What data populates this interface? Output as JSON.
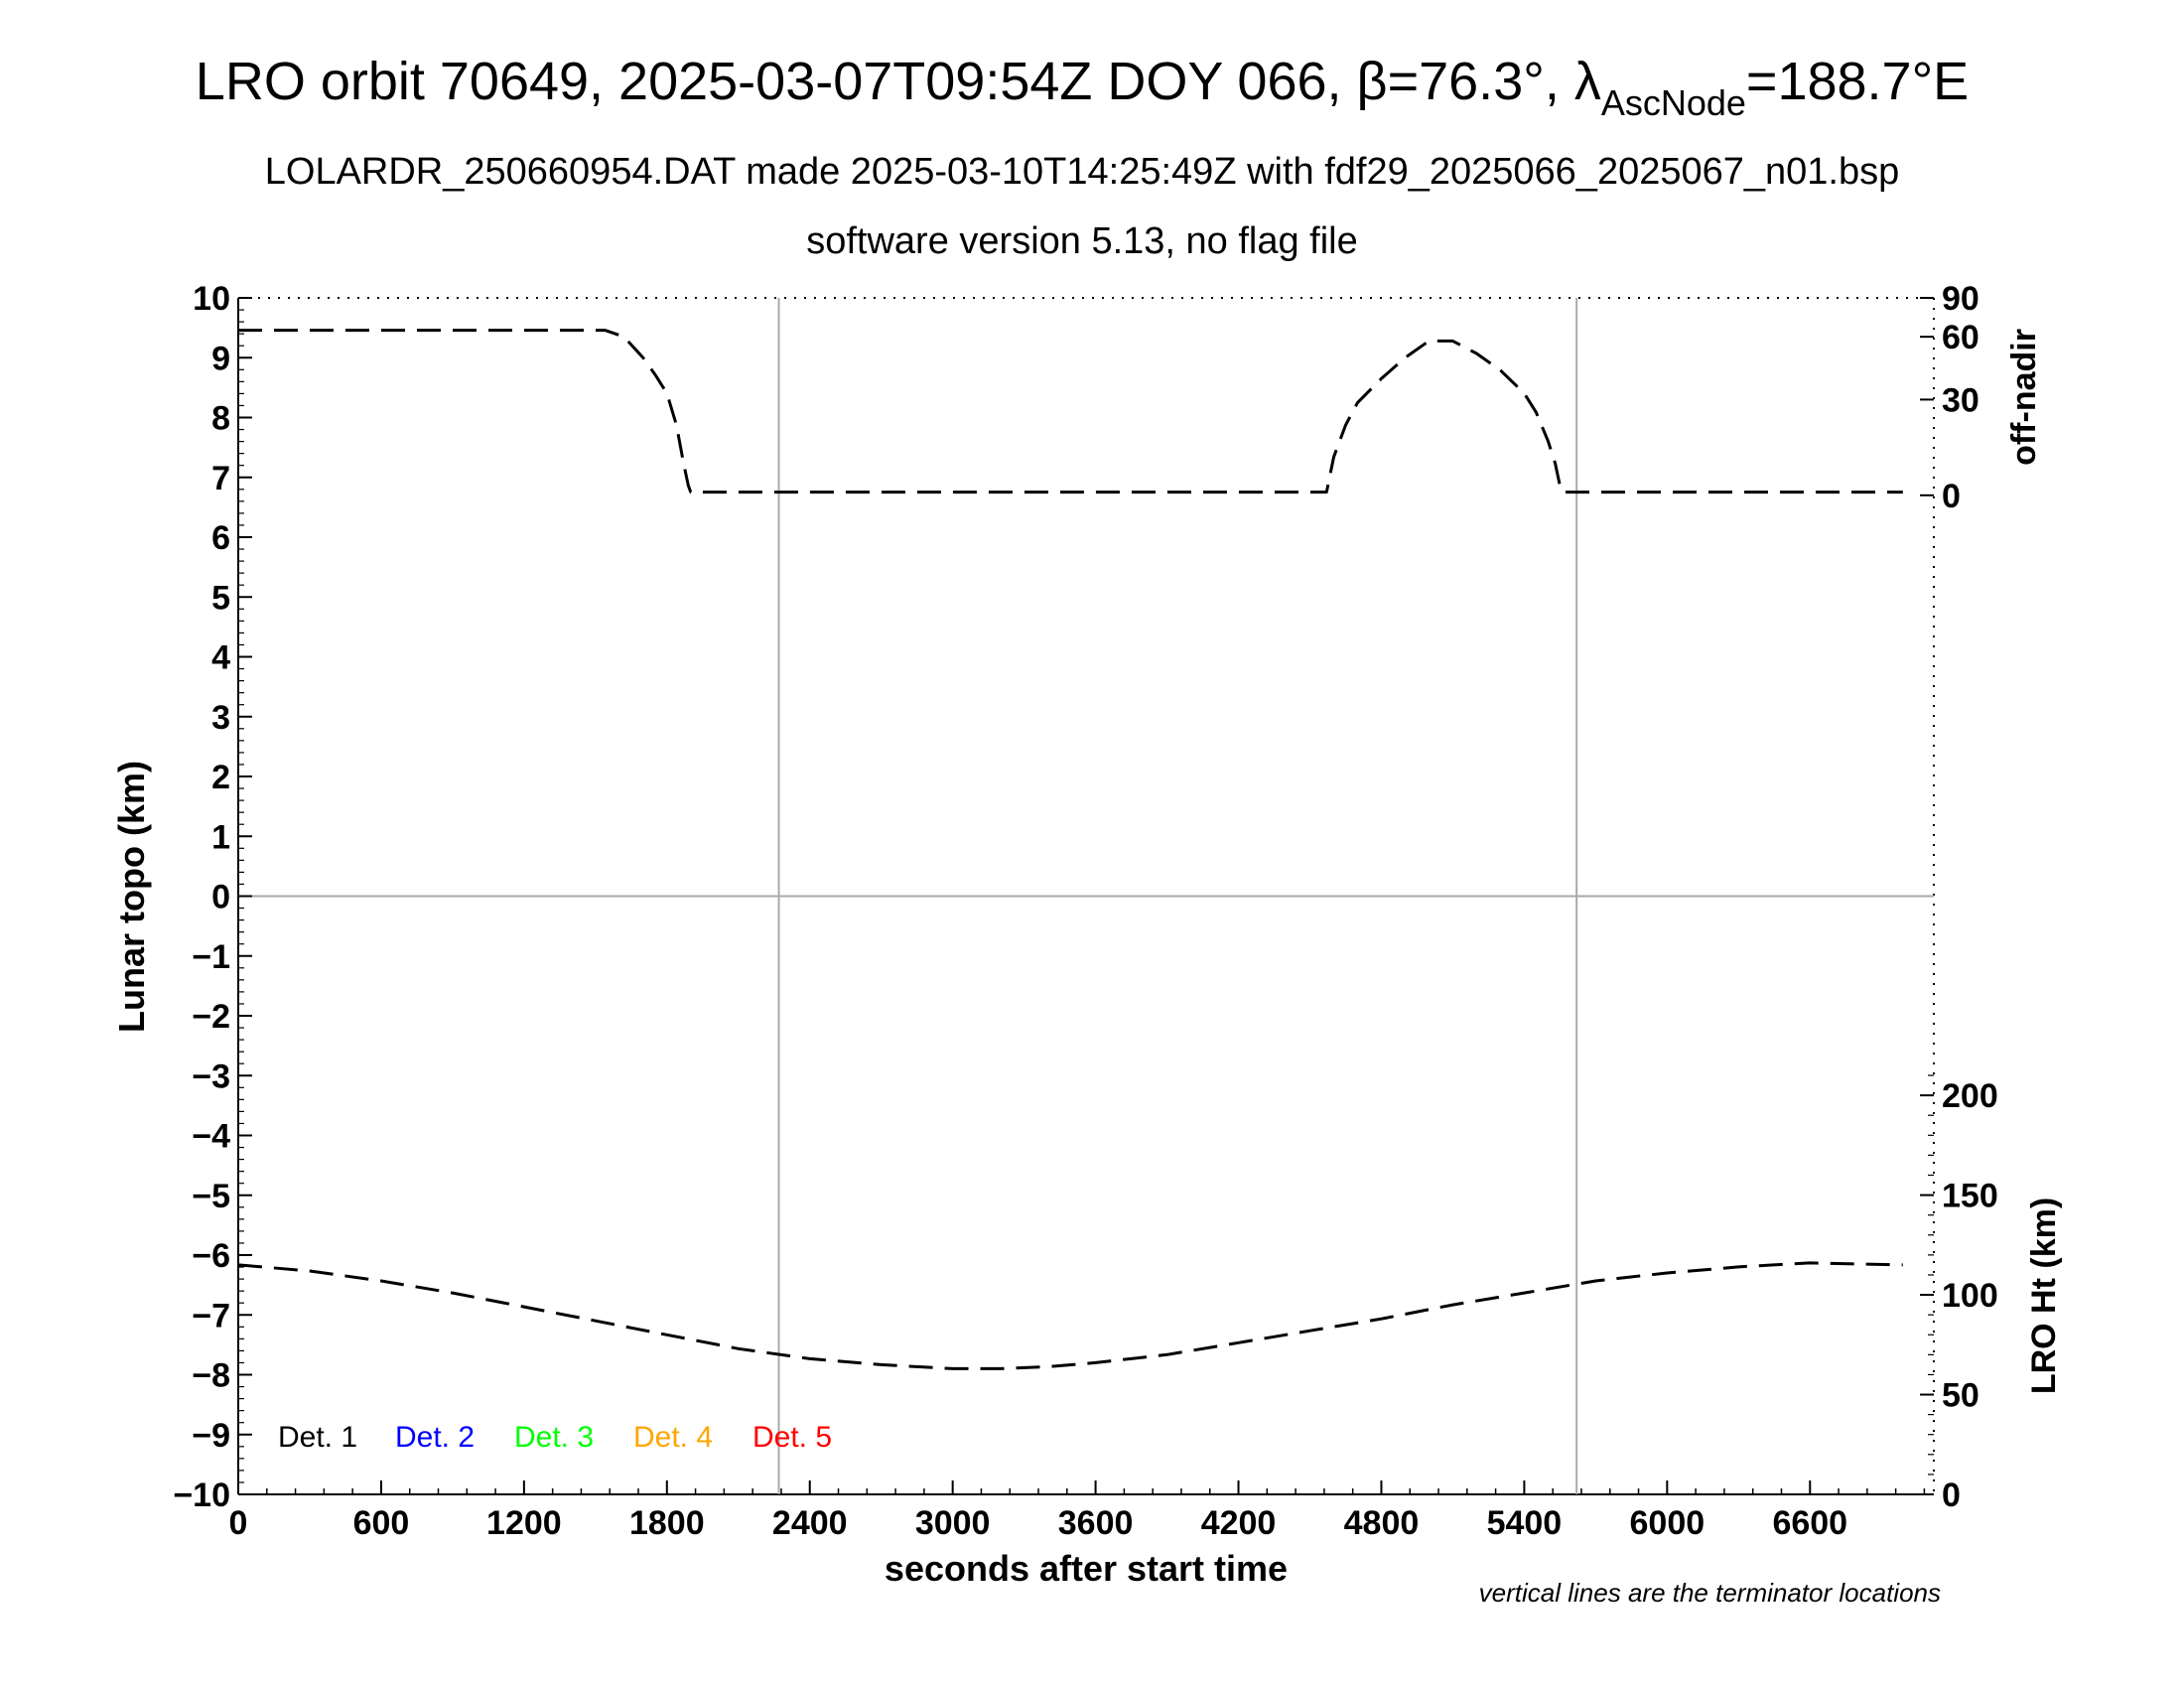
{
  "title": {
    "main_prefix": "LRO orbit 70649, 2025-03-07T09:54Z DOY 066, β=76.3°, λ",
    "main_sub": "AscNode",
    "main_suffix": "=188.7°E",
    "line2": "LOLARDR_250660954.DAT made 2025-03-10T14:25:49Z with fdf29_2025066_2025067_n01.bsp",
    "line3": "software version 5.13, no flag file"
  },
  "note": "vertical lines are the terminator locations",
  "legend": [
    {
      "label": "Det. 1",
      "color": "#000000"
    },
    {
      "label": "Det. 2",
      "color": "#0000ff"
    },
    {
      "label": "Det. 3",
      "color": "#00ff00"
    },
    {
      "label": "Det. 4",
      "color": "#ffa500"
    },
    {
      "label": "Det. 5",
      "color": "#ff0000"
    }
  ],
  "chart_data": {
    "type": "line",
    "xlabel": "seconds after start time",
    "ylabel": "Lunar topo (km)",
    "xlim": [
      0,
      7120
    ],
    "ylim": [
      -10,
      10
    ],
    "x_ticks": [
      0,
      600,
      1200,
      1800,
      2400,
      3000,
      3600,
      4200,
      4800,
      5400,
      6000,
      6600
    ],
    "y_ticks": [
      10,
      9,
      8,
      7,
      6,
      5,
      4,
      3,
      2,
      1,
      0,
      -1,
      -2,
      -3,
      -4,
      -5,
      -6,
      -7,
      -8,
      -9,
      -10
    ],
    "y_tick_labels": [
      "10",
      "9",
      "8",
      "7",
      "6",
      "5",
      "4",
      "3",
      "2",
      "1",
      "0",
      "−1",
      "−2",
      "−3",
      "−4",
      "−5",
      "−6",
      "−7",
      "−8",
      "−9",
      "−10"
    ],
    "terminator_x": [
      2270,
      5620
    ],
    "grid": false,
    "right_axes": [
      {
        "label": "off-nadir",
        "ticks": [
          0,
          30,
          60,
          90
        ],
        "maps_to_left": [
          {
            "value": 0,
            "left": 6.7
          },
          {
            "value": 30,
            "left": 8.3
          },
          {
            "value": 60,
            "left": 9.35
          },
          {
            "value": 90,
            "left": 10
          }
        ]
      },
      {
        "label": "LRO Ht (km)",
        "ticks": [
          0,
          50,
          100,
          150,
          200
        ],
        "ylim": [
          0,
          200
        ],
        "maps_to_left": [
          {
            "value": 0,
            "left": -10
          },
          {
            "value": 200,
            "left": -3.33
          }
        ]
      }
    ],
    "series": [
      {
        "axis": "off-nadir",
        "style": "dashed",
        "x": [
          0,
          300,
          600,
          900,
          1200,
          1540,
          1620,
          1700,
          1750,
          1800,
          1840,
          1870,
          1890,
          1900,
          2000,
          2400,
          3000,
          3600,
          4200,
          4560,
          4570,
          4600,
          4650,
          4700,
          4800,
          4900,
          5000,
          5100,
          5200,
          5300,
          5400,
          5450,
          5500,
          5530,
          5550,
          5560,
          5600,
          6000,
          6600,
          6990
        ],
        "y": [
          65,
          65,
          65,
          65,
          65,
          65,
          60,
          50,
          42,
          33,
          22,
          10,
          3,
          1,
          1,
          1,
          1,
          1,
          1,
          1,
          1,
          12,
          22,
          29,
          40,
          50,
          58,
          58,
          52,
          44,
          33,
          26,
          17,
          10,
          3,
          1,
          1,
          1,
          1,
          1
        ]
      },
      {
        "axis": "LRO Ht (km)",
        "style": "dashed",
        "x": [
          0,
          300,
          600,
          900,
          1200,
          1500,
          1800,
          2100,
          2400,
          2700,
          3000,
          3200,
          3400,
          3600,
          3900,
          4200,
          4500,
          4800,
          5100,
          5400,
          5700,
          6000,
          6300,
          6600,
          6990
        ],
        "y": [
          115,
          112,
          107,
          101,
          94,
          87,
          80,
          73,
          68,
          65,
          63,
          63,
          64,
          66,
          70,
          76,
          82,
          88,
          95,
          101,
          107,
          111,
          114,
          116,
          115
        ]
      }
    ]
  }
}
